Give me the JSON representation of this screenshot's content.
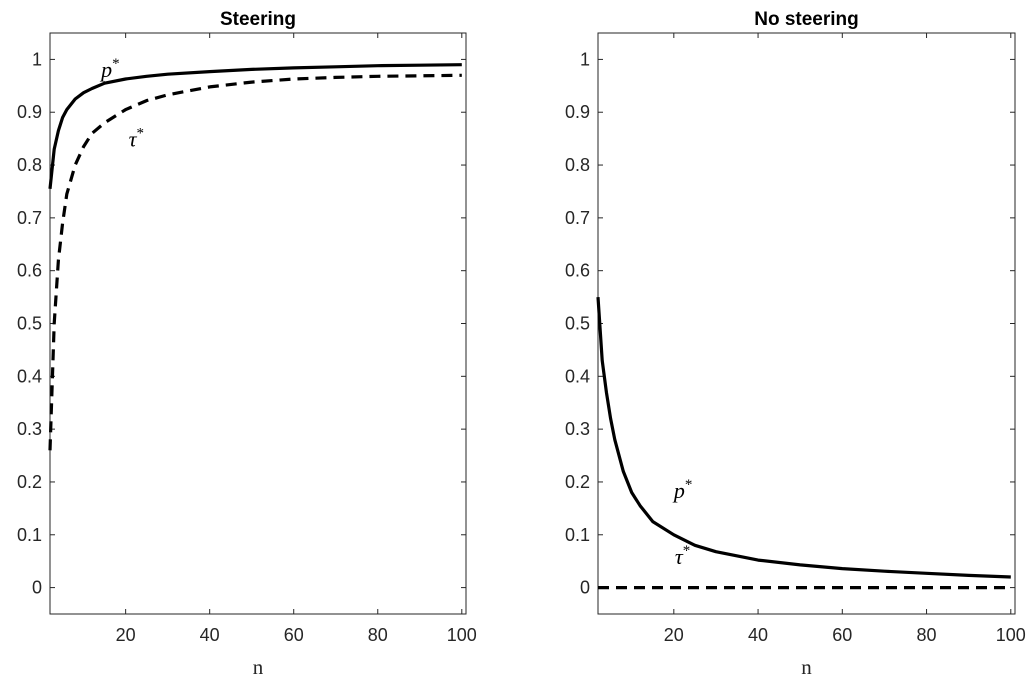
{
  "chart_data": [
    {
      "type": "line",
      "title": "Steering",
      "xlabel": "n",
      "ylabel": "",
      "xlim": [
        2,
        101
      ],
      "ylim": [
        -0.05,
        1.05
      ],
      "xticks": [
        20,
        40,
        60,
        80,
        100
      ],
      "yticks": [
        0,
        0.1,
        0.2,
        0.3,
        0.4,
        0.5,
        0.6,
        0.7,
        0.8,
        0.9,
        1
      ],
      "x": [
        2,
        3,
        4,
        5,
        6,
        8,
        10,
        12,
        15,
        20,
        25,
        30,
        40,
        50,
        60,
        70,
        80,
        90,
        100
      ],
      "series": [
        {
          "name": "p*",
          "style": "solid",
          "color": "#000000",
          "values": [
            0.755,
            0.83,
            0.865,
            0.89,
            0.905,
            0.925,
            0.937,
            0.945,
            0.955,
            0.963,
            0.968,
            0.972,
            0.977,
            0.981,
            0.984,
            0.986,
            0.988,
            0.989,
            0.99
          ]
        },
        {
          "name": "τ*",
          "style": "dashed",
          "color": "#000000",
          "values": [
            0.26,
            0.5,
            0.62,
            0.69,
            0.745,
            0.8,
            0.835,
            0.86,
            0.88,
            0.905,
            0.922,
            0.933,
            0.948,
            0.957,
            0.963,
            0.966,
            0.968,
            0.969,
            0.97
          ]
        }
      ],
      "annotations": [
        {
          "text": "p",
          "sup": "*",
          "series": "p*"
        },
        {
          "text": "τ",
          "sup": "*",
          "series": "τ*"
        }
      ]
    },
    {
      "type": "line",
      "title": "No steering",
      "xlabel": "n",
      "ylabel": "",
      "xlim": [
        2,
        101
      ],
      "ylim": [
        -0.05,
        1.05
      ],
      "xticks": [
        20,
        40,
        60,
        80,
        100
      ],
      "yticks": [
        0,
        0.1,
        0.2,
        0.3,
        0.4,
        0.5,
        0.6,
        0.7,
        0.8,
        0.9,
        1
      ],
      "x": [
        2,
        3,
        4,
        5,
        6,
        8,
        10,
        12,
        15,
        20,
        25,
        30,
        40,
        50,
        60,
        70,
        80,
        90,
        100
      ],
      "series": [
        {
          "name": "p*",
          "style": "solid",
          "color": "#000000",
          "values": [
            0.55,
            0.43,
            0.37,
            0.32,
            0.28,
            0.22,
            0.18,
            0.155,
            0.125,
            0.1,
            0.08,
            0.068,
            0.052,
            0.043,
            0.036,
            0.031,
            0.027,
            0.023,
            0.02
          ]
        },
        {
          "name": "τ*",
          "style": "dashed",
          "color": "#000000",
          "values": [
            0,
            0,
            0,
            0,
            0,
            0,
            0,
            0,
            0,
            0,
            0,
            0,
            0,
            0,
            0,
            0,
            0,
            0,
            0
          ]
        }
      ],
      "annotations": [
        {
          "text": "p",
          "sup": "*",
          "series": "p*"
        },
        {
          "text": "τ",
          "sup": "*",
          "series": "τ*"
        }
      ]
    }
  ]
}
